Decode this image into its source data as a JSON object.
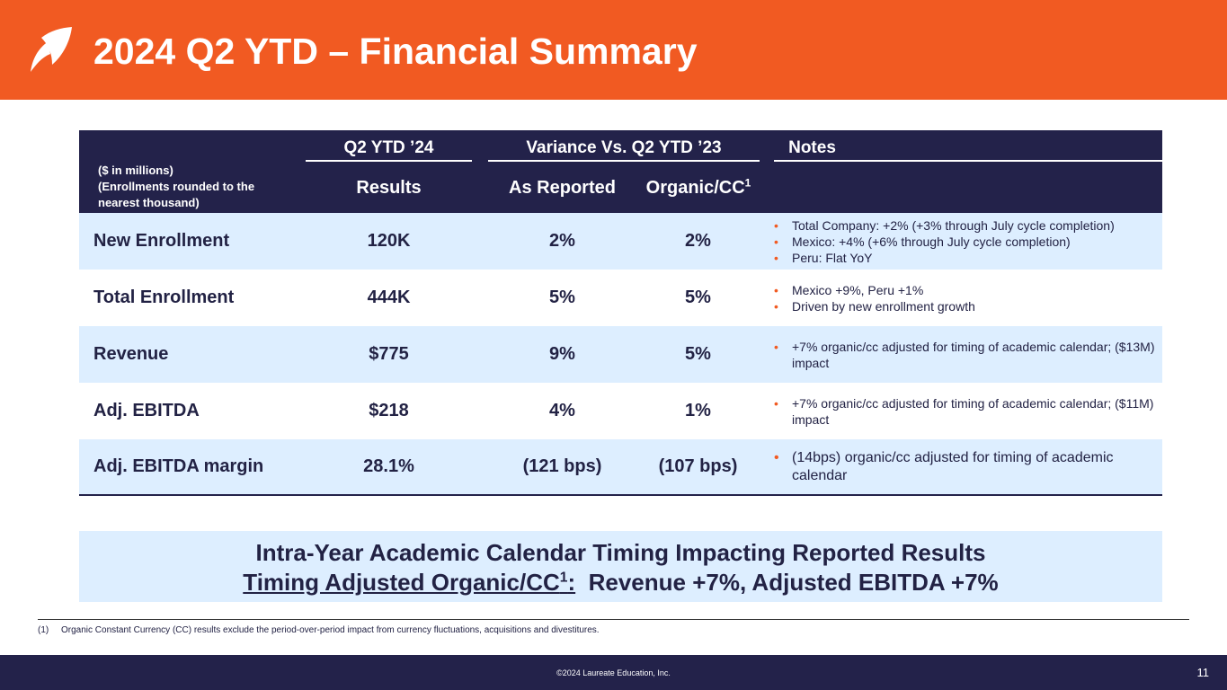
{
  "header": {
    "title": "2024 Q2 YTD – Financial Summary",
    "accent_color": "#f15a22",
    "logo_icon": "leaf-icon"
  },
  "table": {
    "units_note": [
      "($ in millions)",
      "(Enrollments  rounded  to the",
      "nearest  thousand)"
    ],
    "group_headers": {
      "q2ytd": "Q2 YTD ’24",
      "variance": "Variance Vs. Q2 YTD ’23",
      "notes": "Notes"
    },
    "sub_headers": {
      "results": "Results",
      "as_reported": "As Reported",
      "organic": "Organic/CC",
      "organic_sup": "1"
    },
    "rows": [
      {
        "label": "New Enrollment",
        "result": "120K",
        "as_reported": "2%",
        "organic": "2%",
        "notes": [
          "Total Company: +2% (+3% through July cycle completion)",
          "Mexico: +4% (+6% through July cycle completion)",
          "Peru: Flat YoY"
        ]
      },
      {
        "label": "Total Enrollment",
        "result": "444K",
        "as_reported": "5%",
        "organic": "5%",
        "notes": [
          "Mexico +9%, Peru +1%",
          "Driven by new enrollment growth"
        ]
      },
      {
        "label": "Revenue",
        "result": "$775",
        "as_reported": "9%",
        "organic": "5%",
        "notes": [
          "+7% organic/cc adjusted for timing of academic calendar; ($13M) impact"
        ]
      },
      {
        "label": "Adj. EBITDA",
        "result": "$218",
        "as_reported": "4%",
        "organic": "1%",
        "notes": [
          "+7% organic/cc adjusted for timing of academic calendar; ($11M) impact"
        ]
      },
      {
        "label": "Adj. EBITDA margin",
        "result": "28.1%",
        "as_reported": "(121 bps)",
        "organic": "(107 bps)",
        "notes": [
          "(14bps) organic/cc adjusted for timing of academic calendar"
        ]
      }
    ]
  },
  "callout": {
    "line1": "Intra-Year Academic Calendar Timing Impacting Reported Results",
    "line2_underlined": "Timing Adjusted Organic/CC",
    "line2_sup": "1",
    "line2_colon": ":",
    "line2_rest": "  Revenue +7%, Adjusted EBITDA +7%"
  },
  "footnote": {
    "number": "(1)",
    "text": "Organic Constant Currency (CC) results exclude the period-over-period impact from currency fluctuations, acquisitions and divestitures."
  },
  "footer": {
    "copyright": "©2024 Laureate Education, Inc.",
    "page_number": "11"
  }
}
